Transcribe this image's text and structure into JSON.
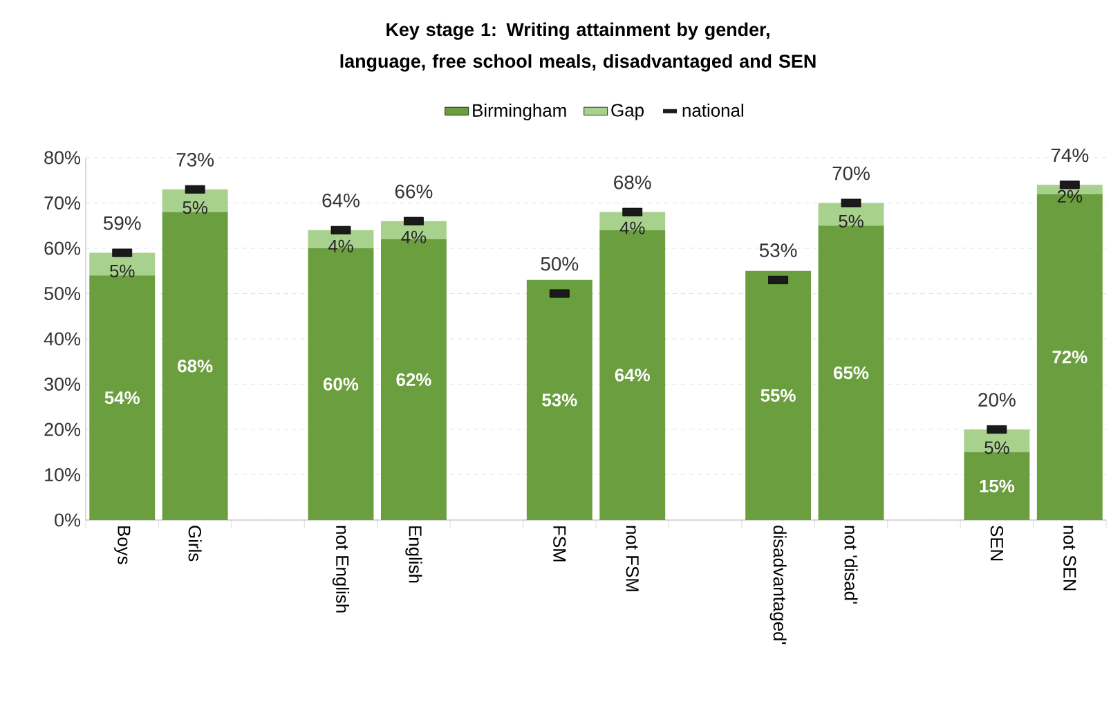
{
  "chart_data": {
    "type": "bar",
    "stacked": true,
    "title": "Key stage 1: Writing attainment by gender, language, free school meals, disadvantaged and SEN",
    "categories": [
      "Boys",
      "Girls",
      null,
      "not English",
      "English",
      null,
      "FSM",
      "not FSM",
      null,
      "disadvantaged'",
      "not 'disad'",
      null,
      "SEN",
      "not SEN"
    ],
    "series": [
      {
        "name": "Birmingham",
        "color": "#6a9e3f",
        "values": [
          54,
          68,
          null,
          60,
          62,
          null,
          53,
          64,
          null,
          55,
          65,
          null,
          15,
          72
        ],
        "value_labels": [
          "54%",
          "68%",
          null,
          "60%",
          "62%",
          null,
          "53%",
          "64%",
          null,
          "55%",
          "65%",
          null,
          "15%",
          "72%"
        ]
      },
      {
        "name": "Gap",
        "color": "#a9d18e",
        "values": [
          5,
          5,
          null,
          4,
          4,
          null,
          null,
          4,
          null,
          null,
          5,
          null,
          5,
          2
        ],
        "value_labels": [
          "5%",
          "5%",
          null,
          "4%",
          "4%",
          null,
          null,
          "4%",
          null,
          null,
          "5%",
          null,
          "5%",
          "2%"
        ]
      },
      {
        "name": "national",
        "type": "scatter",
        "color": "#1a1a1a",
        "values": [
          59,
          73,
          null,
          64,
          66,
          null,
          50,
          68,
          null,
          53,
          70,
          null,
          20,
          74
        ],
        "value_labels": [
          "59%",
          "73%",
          null,
          "64%",
          "66%",
          null,
          "50%",
          "68%",
          null,
          "53%",
          "70%",
          null,
          "20%",
          "74%"
        ]
      }
    ],
    "ylim": [
      0,
      80
    ],
    "yticks": [
      {
        "value": 0,
        "label": "0%"
      },
      {
        "value": 10,
        "label": "10%"
      },
      {
        "value": 20,
        "label": "20%"
      },
      {
        "value": 30,
        "label": "30%"
      },
      {
        "value": 40,
        "label": "40%"
      },
      {
        "value": 50,
        "label": "50%"
      },
      {
        "value": 60,
        "label": "60%"
      },
      {
        "value": 70,
        "label": "70%"
      },
      {
        "value": 80,
        "label": "80%"
      }
    ],
    "grid": "y",
    "legend": "top"
  }
}
